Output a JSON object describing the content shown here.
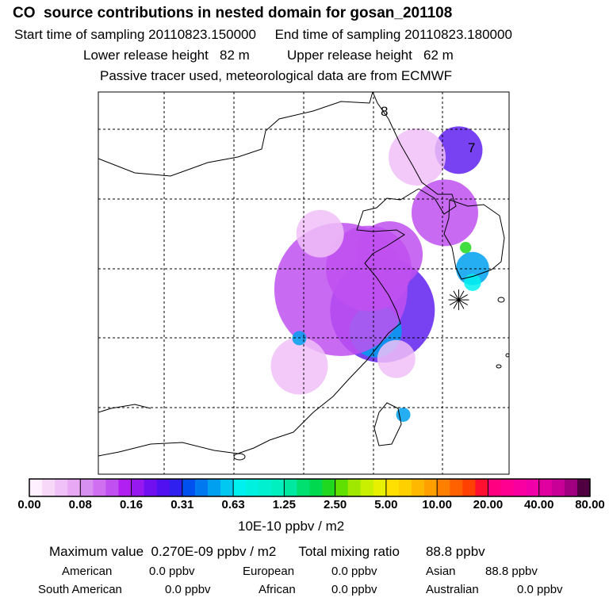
{
  "header": {
    "title": "CO  source contributions in nested domain for gosan_201108",
    "start_label": "Start time of sampling",
    "start_value": "20110823.150000",
    "end_label": "End time of sampling",
    "end_value": "20110823.180000",
    "lower_label": "Lower release height",
    "lower_value": "82 m",
    "upper_label": "Upper release height",
    "upper_value": "62 m",
    "subtitle": "Passive tracer used, meteorological data are from ECMWF"
  },
  "map_labels": [
    "8",
    "7"
  ],
  "chart_data": {
    "type": "heatmap",
    "title": "CO  source contributions in nested domain for gosan_201108",
    "colorbar": {
      "ticks": [
        "0.00",
        "0.08",
        "0.16",
        "0.31",
        "0.63",
        "1.25",
        "2.50",
        "5.00",
        "10.00",
        "20.00",
        "40.00",
        "80.00"
      ],
      "unit": "10E-10 ppbv / m2",
      "colors": [
        [
          "#fff0ff",
          "#f8d8f8",
          "#f0c0f8",
          "#e8a8f4"
        ],
        [
          "#d890f0",
          "#d070f0",
          "#c050f0",
          "#b020f0"
        ],
        [
          "#9818f0",
          "#7010f0",
          "#5010f0",
          "#3020f0"
        ],
        [
          "#0050f0",
          "#0078f0",
          "#00a0f0",
          "#00c8f0"
        ],
        [
          "#00f0f0",
          "#00f0e0",
          "#00f0d0",
          "#00f0c0"
        ],
        [
          "#00e8a0",
          "#00e070",
          "#00d850",
          "#20d820"
        ],
        [
          "#60e000",
          "#a0e800",
          "#c8f000",
          "#e8f000"
        ],
        [
          "#ffe000",
          "#ffd000",
          "#ffb800",
          "#ffa000"
        ],
        [
          "#ff8000",
          "#ff6000",
          "#ff4000",
          "#ff1030"
        ],
        [
          "#ff0080",
          "#ff0090",
          "#f800a0",
          "#f000a8"
        ],
        [
          "#e000a0",
          "#c80098",
          "#a00080",
          "#500040"
        ]
      ]
    },
    "max_value": "0.270E-09 ppbv / m2",
    "total_mixing_ratio": "88.8 ppbv",
    "contributions": [
      {
        "region": "American",
        "value": "0.0 ppbv"
      },
      {
        "region": "European",
        "value": "0.0 ppbv"
      },
      {
        "region": "Asian",
        "value": "88.8 ppbv"
      },
      {
        "region": "South American",
        "value": "0.0 ppbv"
      },
      {
        "region": "African",
        "value": "0.0 ppbv"
      },
      {
        "region": "Australian",
        "value": "0.0 ppbv"
      }
    ],
    "plumes": [
      {
        "lon_idx": 4.1,
        "lat_idx": 2.6,
        "level": 2,
        "r": 1.1
      },
      {
        "lon_idx": 4.0,
        "lat_idx": 2.9,
        "level": 3,
        "r": 0.55
      },
      {
        "lon_idx": 3.5,
        "lat_idx": 2.3,
        "level": 1,
        "r": 1.4
      },
      {
        "lon_idx": 3.9,
        "lat_idx": 2.0,
        "level": 1,
        "r": 0.9
      },
      {
        "lon_idx": 4.2,
        "lat_idx": 1.8,
        "level": 1,
        "r": 0.7
      },
      {
        "lon_idx": 2.9,
        "lat_idx": 3.4,
        "level": 0,
        "r": 0.6
      },
      {
        "lon_idx": 2.9,
        "lat_idx": 3.0,
        "level": 3,
        "r": 0.15
      },
      {
        "lon_idx": 4.3,
        "lat_idx": 3.3,
        "level": 0,
        "r": 0.4
      },
      {
        "lon_idx": 4.4,
        "lat_idx": 4.1,
        "level": 3,
        "r": 0.15
      },
      {
        "lon_idx": 5.4,
        "lat_idx": 2.0,
        "level": 3,
        "r": 0.35
      },
      {
        "lon_idx": 5.4,
        "lat_idx": 2.2,
        "level": 4,
        "r": 0.18
      },
      {
        "lon_idx": 5.3,
        "lat_idx": 1.7,
        "level": 5,
        "r": 0.12
      },
      {
        "lon_idx": 5.2,
        "lat_idx": 0.3,
        "level": 2,
        "r": 0.5
      },
      {
        "lon_idx": 5.0,
        "lat_idx": 1.2,
        "level": 1,
        "r": 0.7
      },
      {
        "lon_idx": 4.6,
        "lat_idx": 0.4,
        "level": 0,
        "r": 0.6
      },
      {
        "lon_idx": 3.2,
        "lat_idx": 1.5,
        "level": 0,
        "r": 0.5
      }
    ],
    "receptor": {
      "lon_idx": 5.2,
      "lat_idx": 2.45
    }
  }
}
